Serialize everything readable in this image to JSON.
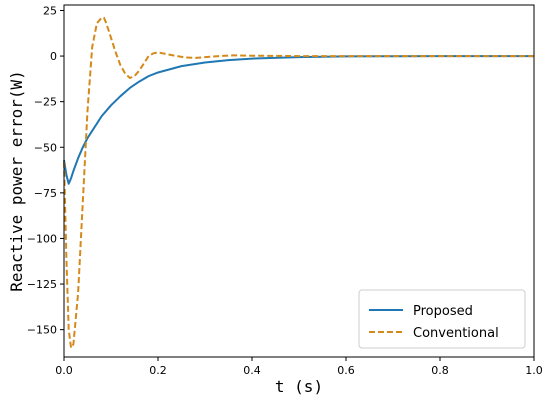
{
  "chart_data": {
    "type": "line",
    "title": "",
    "xlabel": "t (s)",
    "ylabel": "Reactive power error(W)",
    "xlim": [
      0.0,
      1.0
    ],
    "ylim": [
      -165,
      28
    ],
    "xticks": [
      0.0,
      0.2,
      0.4,
      0.6,
      0.8,
      1.0
    ],
    "xtick_labels": [
      "0.0",
      "0.2",
      "0.4",
      "0.6",
      "0.8",
      "1.0"
    ],
    "yticks": [
      25,
      0,
      -25,
      -50,
      -75,
      -100,
      -125,
      -150
    ],
    "ytick_labels": [
      "25",
      "0",
      "−25",
      "−50",
      "−75",
      "−100",
      "−125",
      "−150"
    ],
    "grid": false,
    "legend_position": "lower-right",
    "series": [
      {
        "name": "Proposed",
        "color": "#1f77b4",
        "style": "solid",
        "x": [
          0.0,
          0.005,
          0.01,
          0.015,
          0.02,
          0.03,
          0.04,
          0.05,
          0.06,
          0.07,
          0.08,
          0.1,
          0.12,
          0.14,
          0.16,
          0.18,
          0.2,
          0.25,
          0.3,
          0.35,
          0.4,
          0.5,
          0.6,
          0.7,
          0.8,
          0.9,
          1.0
        ],
        "y": [
          -57,
          -65,
          -70,
          -67,
          -63,
          -56,
          -50,
          -45,
          -41,
          -37,
          -33,
          -27,
          -22,
          -17.5,
          -14,
          -11,
          -9,
          -5.5,
          -3.5,
          -2.2,
          -1.4,
          -0.6,
          -0.2,
          -0.1,
          0,
          0,
          0
        ]
      },
      {
        "name": "Conventional",
        "color": "#d4891b",
        "style": "dashed",
        "x": [
          0.0,
          0.005,
          0.01,
          0.015,
          0.02,
          0.03,
          0.04,
          0.05,
          0.06,
          0.07,
          0.08,
          0.085,
          0.09,
          0.1,
          0.11,
          0.12,
          0.13,
          0.14,
          0.15,
          0.16,
          0.17,
          0.18,
          0.19,
          0.2,
          0.21,
          0.22,
          0.24,
          0.26,
          0.28,
          0.3,
          0.33,
          0.36,
          0.4,
          0.5,
          0.6,
          0.8,
          1.0
        ],
        "y": [
          -58,
          -110,
          -150,
          -160,
          -158,
          -130,
          -80,
          -30,
          5,
          18,
          21,
          21,
          18,
          10,
          2,
          -5,
          -9.5,
          -12,
          -11,
          -8,
          -4,
          0,
          1.5,
          2,
          1.5,
          1,
          0,
          -0.8,
          -1,
          -0.6,
          0,
          0.4,
          0.2,
          0,
          0,
          0,
          0
        ]
      }
    ]
  }
}
